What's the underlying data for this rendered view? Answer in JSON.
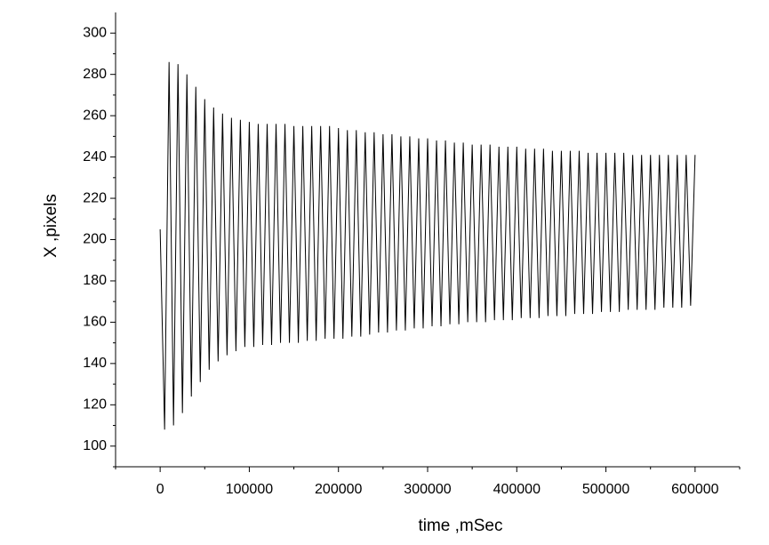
{
  "chart_data": {
    "type": "line",
    "x_label": "time ,mSec",
    "y_label": "X ,pixels",
    "color": "#000000",
    "xlim": [
      -50000,
      650000
    ],
    "xticks": [
      0,
      100000,
      200000,
      300000,
      400000,
      500000,
      600000
    ],
    "ylim": [
      90,
      310
    ],
    "yticks": [
      100,
      120,
      140,
      160,
      180,
      200,
      220,
      240,
      260,
      280,
      300
    ],
    "grid": false,
    "x": [
      0,
      5000,
      10000,
      15000,
      20000,
      25000,
      30000,
      35000,
      40000,
      45000,
      50000,
      55000,
      60000,
      65000,
      70000,
      75000,
      80000,
      85000,
      90000,
      95000,
      100000,
      105000,
      110000,
      115000,
      120000,
      125000,
      130000,
      135000,
      140000,
      145000,
      150000,
      155000,
      160000,
      165000,
      170000,
      175000,
      180000,
      185000,
      190000,
      195000,
      200000,
      205000,
      210000,
      215000,
      220000,
      225000,
      230000,
      235000,
      240000,
      245000,
      250000,
      255000,
      260000,
      265000,
      270000,
      275000,
      280000,
      285000,
      290000,
      295000,
      300000,
      305000,
      310000,
      315000,
      320000,
      325000,
      330000,
      335000,
      340000,
      345000,
      350000,
      355000,
      360000,
      365000,
      370000,
      375000,
      380000,
      385000,
      390000,
      395000,
      400000,
      405000,
      410000,
      415000,
      420000,
      425000,
      430000,
      435000,
      440000,
      445000,
      450000,
      455000,
      460000,
      465000,
      470000,
      475000,
      480000,
      485000,
      490000,
      495000,
      500000,
      505000,
      510000,
      515000,
      520000,
      525000,
      530000,
      535000,
      540000,
      545000,
      550000,
      555000,
      560000,
      565000,
      570000,
      575000,
      580000,
      585000,
      590000,
      595000,
      600000
    ],
    "values": [
      205,
      108,
      286,
      110,
      285,
      116,
      280,
      124,
      274,
      131,
      268,
      137,
      264,
      141,
      261,
      144,
      259,
      146,
      258,
      148,
      257,
      148,
      256,
      149,
      256,
      149,
      256,
      150,
      256,
      150,
      255,
      150,
      255,
      151,
      255,
      151,
      255,
      152,
      255,
      152,
      254,
      152,
      253,
      153,
      253,
      153,
      252,
      154,
      252,
      155,
      251,
      155,
      251,
      156,
      250,
      156,
      250,
      157,
      249,
      157,
      249,
      158,
      248,
      158,
      248,
      159,
      247,
      159,
      247,
      160,
      246,
      160,
      246,
      160,
      246,
      161,
      245,
      161,
      245,
      161,
      245,
      162,
      244,
      162,
      244,
      162,
      244,
      163,
      243,
      163,
      243,
      163,
      243,
      164,
      243,
      164,
      242,
      164,
      242,
      165,
      242,
      165,
      242,
      165,
      242,
      166,
      241,
      166,
      241,
      166,
      241,
      166,
      241,
      167,
      241,
      167,
      241,
      167,
      241,
      168,
      241
    ]
  }
}
